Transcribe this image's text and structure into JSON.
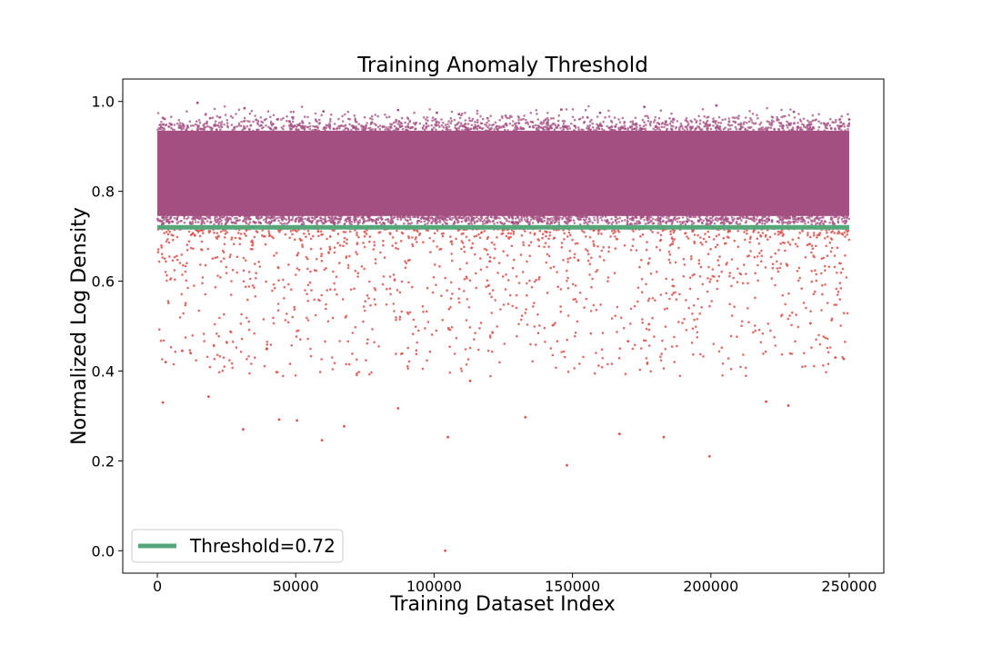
{
  "chart_data": {
    "type": "scatter",
    "title": "Training Anomaly Threshold",
    "xlabel": "Training Dataset Index",
    "ylabel": "Normalized Log Density",
    "xlim": [
      -12500,
      262500
    ],
    "ylim": [
      -0.05,
      1.05
    ],
    "x_ticks": [
      0,
      50000,
      100000,
      150000,
      200000,
      250000
    ],
    "y_ticks": [
      0.0,
      0.2,
      0.4,
      0.6,
      0.8,
      1.0
    ],
    "x_tick_labels": [
      "0",
      "50000",
      "100000",
      "150000",
      "200000",
      "250000"
    ],
    "y_tick_labels": [
      "0.0",
      "0.2",
      "0.4",
      "0.6",
      "0.8",
      "1.0"
    ],
    "threshold": 0.72,
    "legend": {
      "label": "Threshold=0.72",
      "placement": "lower-left"
    },
    "grid": false,
    "series": [
      {
        "role": "normal",
        "color": "#a34f82",
        "description_points": "dense band of points between about 0.74 and 0.94, scattered up to 1.0",
        "x_range": [
          0,
          250000
        ],
        "band": [
          0.745,
          0.935
        ],
        "outliers_above": [
          [
            14500,
            0.997
          ],
          [
            31500,
            0.985
          ],
          [
            60000,
            0.978
          ],
          [
            87000,
            0.981
          ],
          [
            101000,
            0.975
          ],
          [
            146000,
            0.982
          ],
          [
            176000,
            0.988
          ],
          [
            202000,
            0.991
          ],
          [
            230000,
            0.977
          ],
          [
            109000,
            0.972
          ],
          [
            160000,
            0.975
          ],
          [
            250000,
            0.96
          ]
        ]
      },
      {
        "role": "anomaly",
        "color": "#d9534f",
        "description_points": "points below the 0.72 threshold",
        "notable_points": [
          [
            2000,
            0.33
          ],
          [
            18500,
            0.343
          ],
          [
            31000,
            0.27
          ],
          [
            44000,
            0.292
          ],
          [
            50500,
            0.29
          ],
          [
            59500,
            0.246
          ],
          [
            67500,
            0.277
          ],
          [
            87000,
            0.317
          ],
          [
            105000,
            0.253
          ],
          [
            104000,
            0.0
          ],
          [
            148000,
            0.19
          ],
          [
            167000,
            0.26
          ],
          [
            183000,
            0.253
          ],
          [
            199500,
            0.21
          ],
          [
            133000,
            0.297
          ],
          [
            228000,
            0.323
          ],
          [
            220000,
            0.332
          ],
          [
            113000,
            0.378
          ],
          [
            3000,
            0.42
          ],
          [
            9000,
            0.445
          ],
          [
            12000,
            0.44
          ],
          [
            236000,
            0.506
          ],
          [
            245000,
            0.43
          ],
          [
            248000,
            0.427
          ]
        ]
      }
    ],
    "colors": {
      "normal": "#a34f82",
      "anomaly": "#d9534f",
      "threshold": "#55a77a"
    }
  }
}
